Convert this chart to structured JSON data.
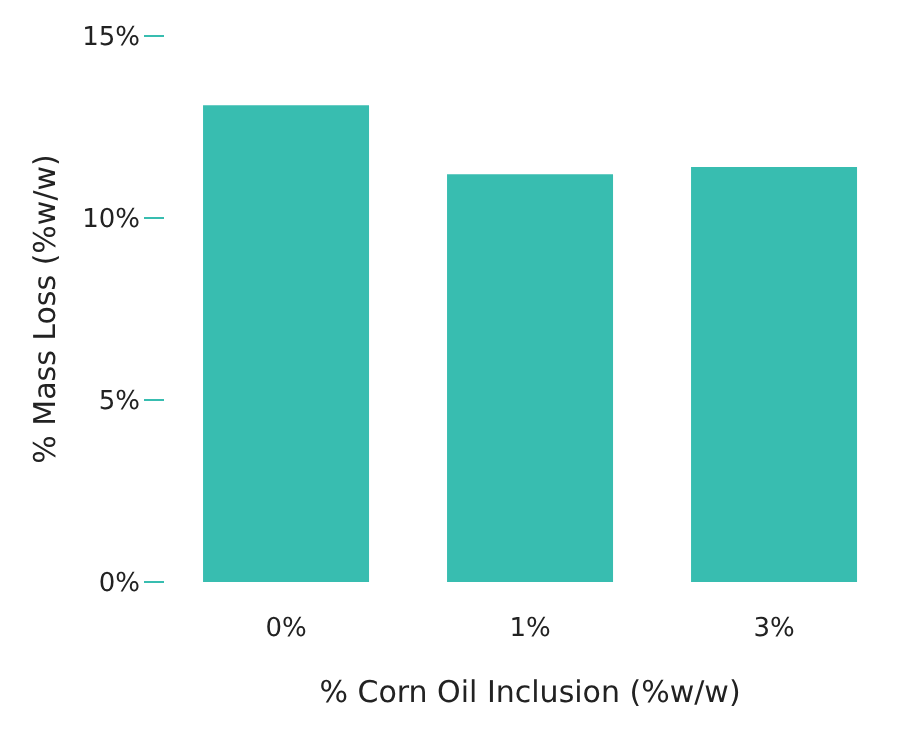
{
  "chart_data": {
    "type": "bar",
    "xlabel": "% Corn Oil Inclusion (%w/w)",
    "ylabel": "% Mass Loss (%w/w)",
    "categories": [
      "0%",
      "1%",
      "3%"
    ],
    "values": [
      13.1,
      11.2,
      11.4
    ],
    "color": "#38bdb0",
    "ylim": [
      0,
      15
    ],
    "yticks": [
      {
        "value": 0,
        "label": "0%"
      },
      {
        "value": 5,
        "label": "5%"
      },
      {
        "value": 10,
        "label": "10%"
      },
      {
        "value": 15,
        "label": "15%"
      }
    ],
    "grid": false
  }
}
